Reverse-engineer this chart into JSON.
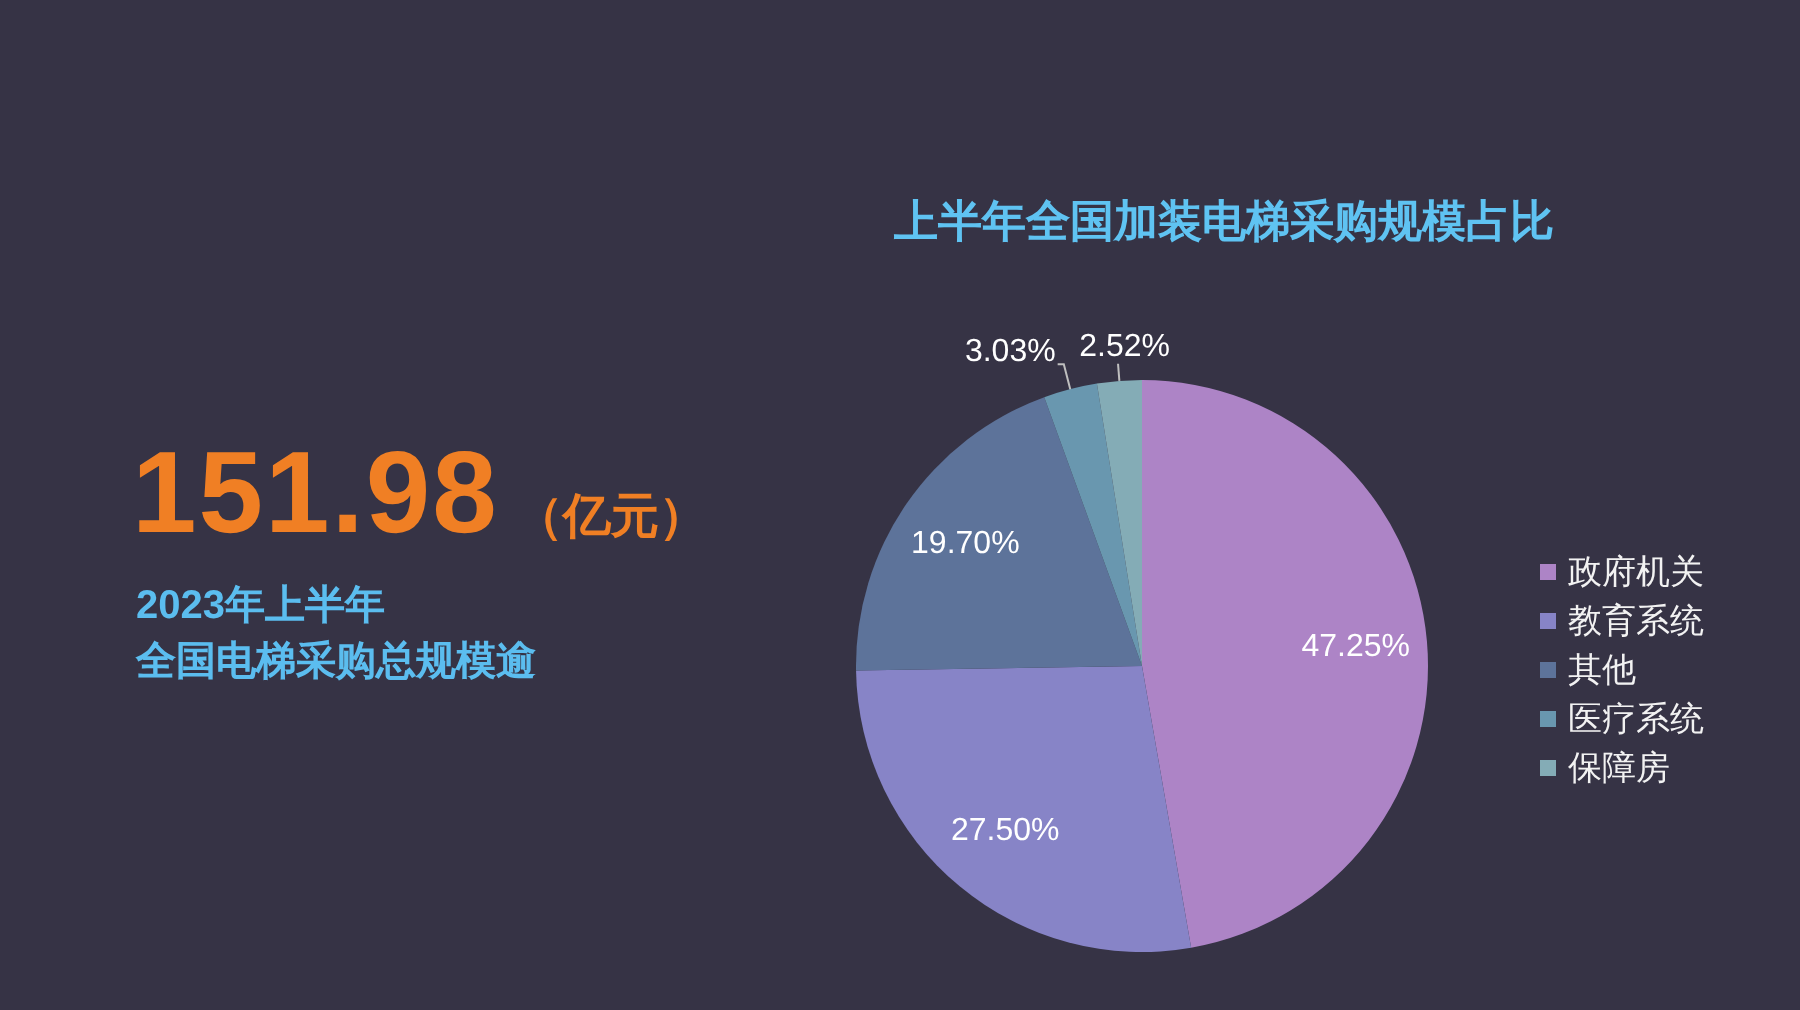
{
  "chart_data": {
    "type": "pie",
    "title": "上半年全国加装电梯采购规模占比",
    "categories": [
      "政府机关",
      "教育系统",
      "其他",
      "医疗系统",
      "保障房"
    ],
    "values": [
      47.25,
      27.5,
      19.7,
      3.03,
      2.52
    ],
    "colors": [
      "#ad84c6",
      "#8784c7",
      "#5d739a",
      "#6997af",
      "#84acb6"
    ],
    "value_labels": [
      "47.25%",
      "27.50%",
      "19.70%",
      "3.03%",
      "2.52%"
    ],
    "legend": "right",
    "annotations": [
      "151.98",
      "（亿元）",
      "2023年上半年",
      "全国电梯采购总规模逾"
    ]
  }
}
